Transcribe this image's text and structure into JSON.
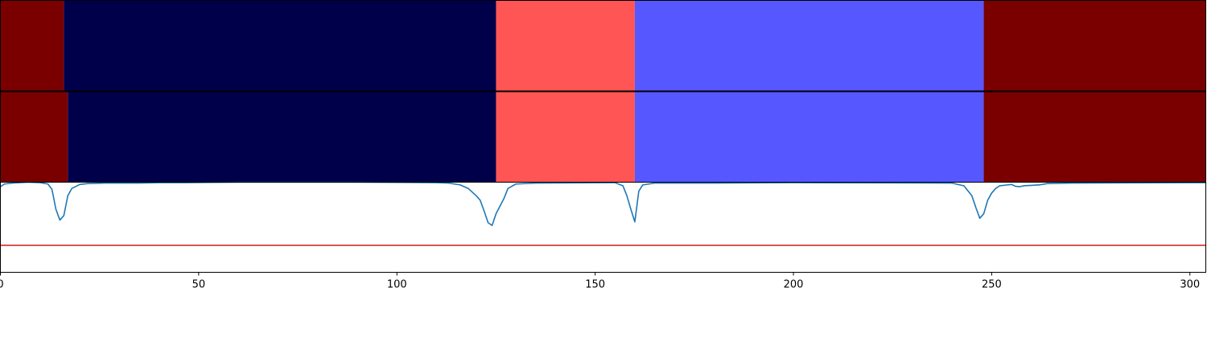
{
  "chart_data": [
    {
      "type": "heatmap",
      "title": "",
      "xlabel": "",
      "ylabel": "",
      "xlim": [
        0,
        304
      ],
      "rows": [
        {
          "segments": [
            {
              "start": 0,
              "end": 16,
              "color": "#7a0000"
            },
            {
              "start": 16,
              "end": 125,
              "color": "#00004a"
            },
            {
              "start": 125,
              "end": 160,
              "color": "#ff5555"
            },
            {
              "start": 160,
              "end": 248,
              "color": "#5757ff"
            },
            {
              "start": 248,
              "end": 304,
              "color": "#7a0000"
            }
          ]
        },
        {
          "segments": [
            {
              "start": 0,
              "end": 17,
              "color": "#7a0000"
            },
            {
              "start": 17,
              "end": 125,
              "color": "#00004a"
            },
            {
              "start": 125,
              "end": 160,
              "color": "#ff5555"
            },
            {
              "start": 160,
              "end": 248,
              "color": "#5757ff"
            },
            {
              "start": 248,
              "end": 304,
              "color": "#7a0000"
            }
          ]
        }
      ]
    },
    {
      "type": "line",
      "title": "",
      "xlabel": "",
      "ylabel": "",
      "xlim": [
        0,
        304
      ],
      "ylim": [
        0,
        1
      ],
      "grid": false,
      "xticks": [
        0,
        50,
        100,
        150,
        200,
        250,
        300
      ],
      "series": [
        {
          "color": "#1f77b4",
          "points": [
            [
              0,
              0.95
            ],
            [
              1,
              0.98
            ],
            [
              3,
              0.99
            ],
            [
              7,
              1.0
            ],
            [
              10,
              0.995
            ],
            [
              12,
              0.98
            ],
            [
              13,
              0.92
            ],
            [
              14,
              0.7
            ],
            [
              15,
              0.58
            ],
            [
              16,
              0.63
            ],
            [
              17,
              0.85
            ],
            [
              18,
              0.93
            ],
            [
              20,
              0.975
            ],
            [
              22,
              0.985
            ],
            [
              26,
              0.99
            ],
            [
              35,
              0.99
            ],
            [
              40,
              0.995
            ],
            [
              47,
              0.995
            ],
            [
              60,
              1.0
            ],
            [
              90,
              1.0
            ],
            [
              110,
              0.995
            ],
            [
              113,
              0.99
            ],
            [
              116,
              0.97
            ],
            [
              118,
              0.93
            ],
            [
              120,
              0.85
            ],
            [
              121,
              0.8
            ],
            [
              122,
              0.68
            ],
            [
              123,
              0.55
            ],
            [
              124,
              0.52
            ],
            [
              125,
              0.65
            ],
            [
              127,
              0.82
            ],
            [
              128,
              0.93
            ],
            [
              130,
              0.98
            ],
            [
              135,
              0.99
            ],
            [
              155,
              0.995
            ],
            [
              157,
              0.96
            ],
            [
              158,
              0.85
            ],
            [
              159,
              0.7
            ],
            [
              160,
              0.56
            ],
            [
              161,
              0.9
            ],
            [
              162,
              0.97
            ],
            [
              165,
              0.99
            ],
            [
              180,
              0.99
            ],
            [
              200,
              0.995
            ],
            [
              240,
              0.99
            ],
            [
              243,
              0.96
            ],
            [
              245,
              0.85
            ],
            [
              246,
              0.72
            ],
            [
              247,
              0.6
            ],
            [
              248,
              0.65
            ],
            [
              249,
              0.8
            ],
            [
              250,
              0.88
            ],
            [
              251,
              0.93
            ],
            [
              252,
              0.96
            ],
            [
              254,
              0.97
            ],
            [
              255,
              0.975
            ],
            [
              256,
              0.955
            ],
            [
              257,
              0.95
            ],
            [
              258,
              0.96
            ],
            [
              260,
              0.965
            ],
            [
              262,
              0.97
            ],
            [
              264,
              0.985
            ],
            [
              270,
              0.99
            ],
            [
              300,
              0.995
            ],
            [
              304,
              0.995
            ]
          ]
        },
        {
          "color": "#d62728",
          "points": [
            [
              0,
              0.3
            ],
            [
              304,
              0.3
            ]
          ]
        }
      ]
    }
  ]
}
